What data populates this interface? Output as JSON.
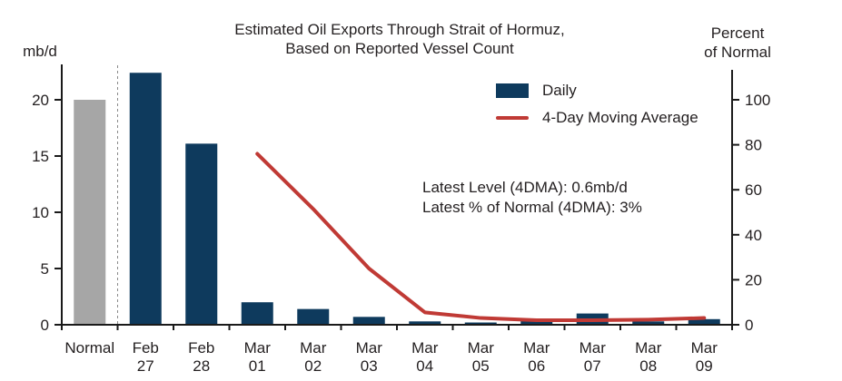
{
  "chart": {
    "title_line1": "Estimated Oil Exports Through Strait of Hormuz,",
    "title_line2": "Based on Reported Vessel Count",
    "left_axis_unit": "mb/d",
    "right_axis_unit_line1": "Percent",
    "right_axis_unit_line2": "of Normal",
    "legend_daily": "Daily",
    "legend_ma": "4-Day Moving Average",
    "annotation_line1": "Latest Level (4DMA): 0.6mb/d",
    "annotation_line2": "Latest % of Normal (4DMA): 3%"
  },
  "chart_data": {
    "type": "bar",
    "title": "Estimated Oil Exports Through Strait of Hormuz, Based on Reported Vessel Count",
    "categories": [
      "Normal",
      "Feb 27",
      "Feb 28",
      "Mar 01",
      "Mar 02",
      "Mar 03",
      "Mar 04",
      "Mar 05",
      "Mar 06",
      "Mar 07",
      "Mar 08",
      "Mar 09"
    ],
    "series": [
      {
        "name": "Daily",
        "type": "bar",
        "values": [
          20.0,
          22.4,
          16.1,
          2.0,
          1.4,
          0.7,
          0.3,
          0.2,
          0.4,
          1.0,
          0.3,
          0.5
        ]
      },
      {
        "name": "4-Day Moving Average",
        "type": "line",
        "values": [
          null,
          null,
          null,
          15.2,
          10.3,
          5.0,
          1.1,
          0.6,
          0.4,
          0.4,
          0.45,
          0.6
        ]
      }
    ],
    "left_axis": {
      "label": "mb/d",
      "ticks": [
        0,
        5,
        10,
        15,
        20
      ],
      "range": [
        0,
        23
      ]
    },
    "right_axis": {
      "label": "Percent of Normal",
      "ticks": [
        0,
        20,
        40,
        60,
        80,
        100
      ],
      "range": [
        0,
        115
      ],
      "scale_vs_left_axis": 5
    },
    "annotations": [
      "Latest Level (4DMA): 0.6mb/d",
      "Latest % of Normal (4DMA): 3%"
    ],
    "legend_position": "upper right",
    "grid": false,
    "normal_category_index": 0,
    "divider_after_category_index": 0,
    "colors": {
      "daily_bar": "#0e3a5d",
      "normal_bar": "#a6a6a6",
      "ma_line": "#c03a35",
      "axis": "#1a1a1a",
      "divider": "#8a8a8a",
      "text": "#231f20"
    }
  }
}
